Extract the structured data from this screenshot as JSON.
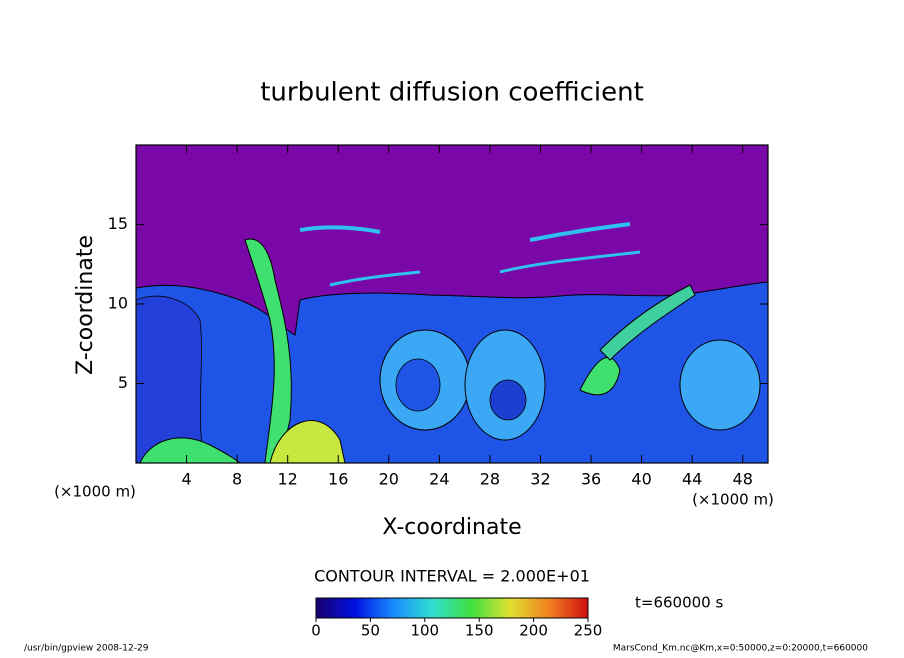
{
  "chart_data": {
    "type": "contour",
    "title": "turbulent diffusion coefficient",
    "x_label": "X-coordinate",
    "y_label": "Z-coordinate",
    "x_unit_label": "(×1000 m)",
    "xlim": [
      0,
      50
    ],
    "ylim": [
      0,
      20
    ],
    "xticks": [
      4,
      8,
      12,
      16,
      20,
      24,
      28,
      32,
      36,
      40,
      44,
      48
    ],
    "yticks": [
      5,
      10,
      15
    ],
    "contour_interval_label": "CONTOUR INTERVAL = 2.000E+01",
    "colorbar": {
      "lim": [
        0,
        250
      ],
      "ticks": [
        0,
        50,
        100,
        150,
        200,
        250
      ],
      "colors": [
        "#1a0070",
        "#0010e0",
        "#1a8cff",
        "#30e0d0",
        "#40e040",
        "#e0e030",
        "#f08020",
        "#d01010"
      ]
    },
    "time_label": "t=660000 s",
    "footer_left": "/usr/bin/gpview   2008-12-29",
    "footer_right": "MarsCond_Km.nc@Km,x=0:50000,z=0:20000,t=660000"
  }
}
